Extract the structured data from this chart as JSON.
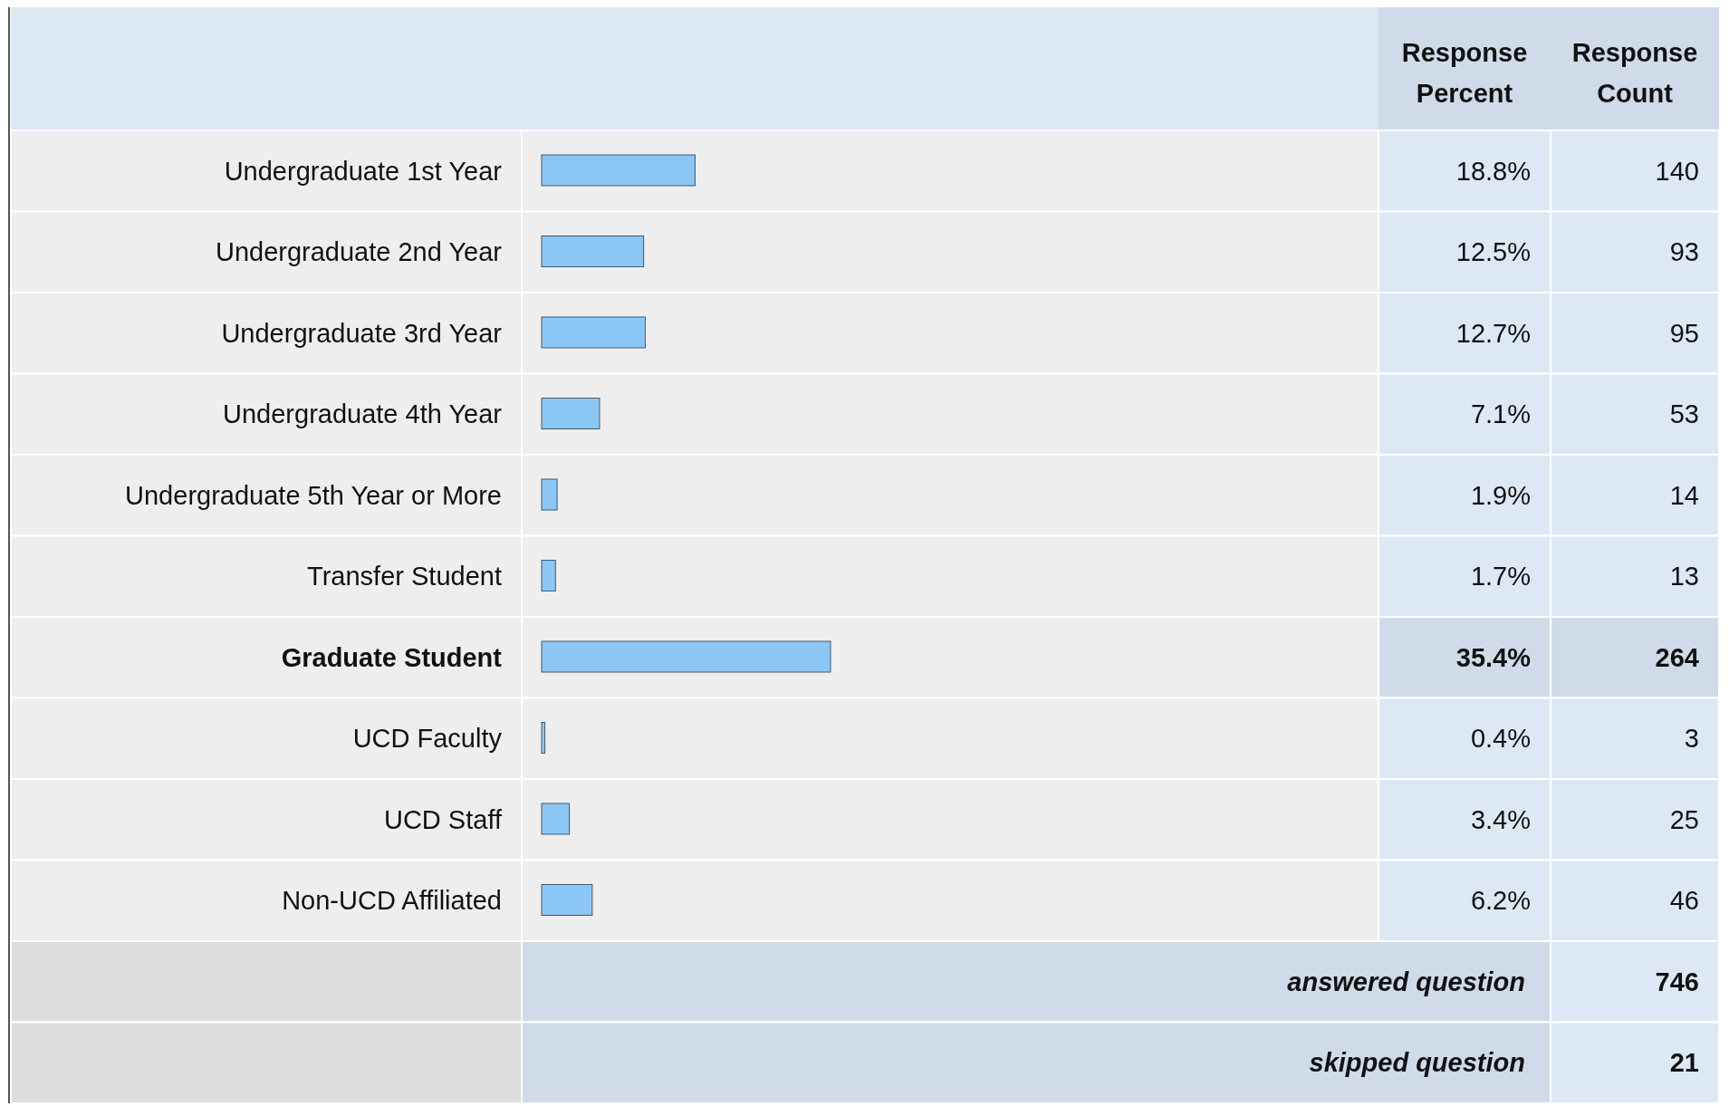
{
  "chart_data": {
    "type": "bar",
    "orientation": "horizontal",
    "categories": [
      "Undergraduate 1st Year",
      "Undergraduate 2nd Year",
      "Undergraduate 3rd Year",
      "Undergraduate 4th Year",
      "Undergraduate 5th Year or More",
      "Transfer Student",
      "Graduate Student",
      "UCD Faculty",
      "UCD Staff",
      "Non-UCD Affiliated"
    ],
    "values": [
      18.8,
      12.5,
      12.7,
      7.1,
      1.9,
      1.7,
      35.4,
      0.4,
      3.4,
      6.2
    ],
    "value_labels": [
      "18.8%",
      "12.5%",
      "12.7%",
      "7.1%",
      "1.9%",
      "1.7%",
      "35.4%",
      "0.4%",
      "3.4%",
      "6.2%"
    ],
    "color": "#8cc6f4",
    "annotations": [
      "Response Percent",
      "Response Count",
      "140",
      "93",
      "95",
      "53",
      "14",
      "13",
      "264",
      "3",
      "25",
      "46",
      "answered question 746",
      "skipped question 21"
    ]
  }
}
